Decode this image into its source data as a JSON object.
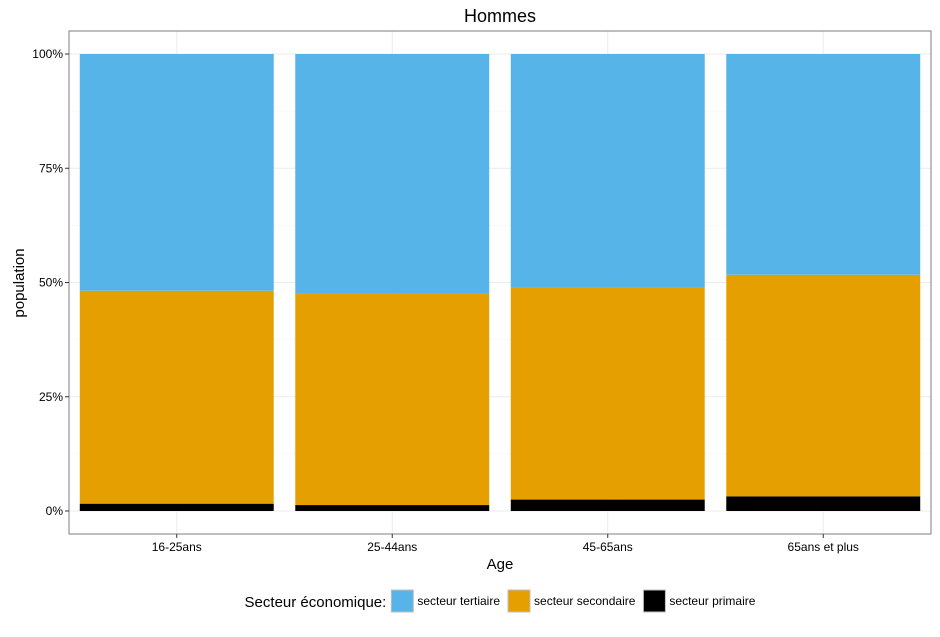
{
  "chart_data": {
    "type": "bar",
    "stacked": true,
    "title": "Hommes",
    "xlabel": "Age",
    "ylabel": "population",
    "categories": [
      "16-25ans",
      "25-44ans",
      "45-65ans",
      "65ans et plus"
    ],
    "series": [
      {
        "name": "secteur primaire",
        "color": "#000000",
        "values": [
          1.6,
          1.3,
          2.5,
          3.2
        ]
      },
      {
        "name": "secteur secondaire",
        "color": "#E69F00",
        "values": [
          46.6,
          46.2,
          46.5,
          48.5
        ]
      },
      {
        "name": "secteur tertiaire",
        "color": "#56B4E9",
        "values": [
          51.8,
          52.5,
          51.0,
          48.3
        ]
      }
    ],
    "ylim": [
      0,
      100
    ],
    "yticks": [
      0,
      25,
      50,
      75,
      100
    ],
    "ytick_labels": [
      "0%",
      "25%",
      "50%",
      "75%",
      "100%"
    ],
    "grid": true,
    "legend": {
      "title": "Secteur économique:",
      "position": "bottom",
      "order": [
        "secteur tertiaire",
        "secteur secondaire",
        "secteur primaire"
      ]
    }
  }
}
